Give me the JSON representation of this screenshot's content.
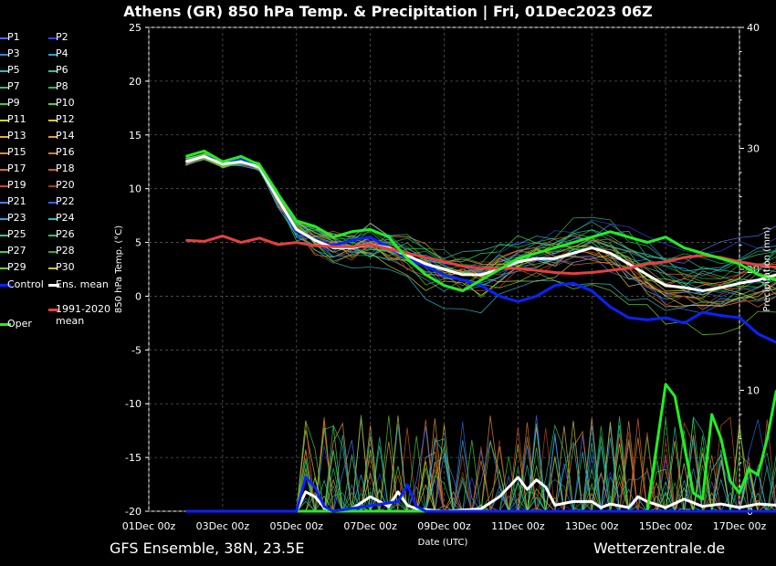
{
  "title": "Athens  (GR)  850 hPa Temp. & Precipitation | Fri, 01Dec2023 06Z",
  "footer": {
    "left": "GFS Ensemble, 38N, 23.5E",
    "right": "Wetterzentrale.de"
  },
  "legend": [
    {
      "label": "P1",
      "color": "#4a6cf7"
    },
    {
      "label": "P2",
      "color": "#3344dd"
    },
    {
      "label": "P3",
      "color": "#2f86e0"
    },
    {
      "label": "P4",
      "color": "#2fa0d0"
    },
    {
      "label": "P5",
      "color": "#2fb7c8"
    },
    {
      "label": "P6",
      "color": "#2ac29a"
    },
    {
      "label": "P7",
      "color": "#28c878"
    },
    {
      "label": "P8",
      "color": "#22c055"
    },
    {
      "label": "P9",
      "color": "#3ad03a"
    },
    {
      "label": "P10",
      "color": "#55d12a"
    },
    {
      "label": "P11",
      "color": "#cfd23a"
    },
    {
      "label": "P12",
      "color": "#e0c040"
    },
    {
      "label": "P13",
      "color": "#e8aa3a"
    },
    {
      "label": "P14",
      "color": "#e89a36"
    },
    {
      "label": "P15",
      "color": "#e88a30"
    },
    {
      "label": "P16",
      "color": "#e07a2a"
    },
    {
      "label": "P17",
      "color": "#e06a30"
    },
    {
      "label": "P18",
      "color": "#d05a2c"
    },
    {
      "label": "P19",
      "color": "#c04a28"
    },
    {
      "label": "P20",
      "color": "#a03a22"
    },
    {
      "label": "P21",
      "color": "#4f7cf0"
    },
    {
      "label": "P22",
      "color": "#3a64e0"
    },
    {
      "label": "P23",
      "color": "#30a8d8"
    },
    {
      "label": "P24",
      "color": "#2fc0c0"
    },
    {
      "label": "P25",
      "color": "#2ccf90"
    },
    {
      "label": "P26",
      "color": "#24c868"
    },
    {
      "label": "P27",
      "color": "#40d840"
    },
    {
      "label": "P28",
      "color": "#30b030"
    },
    {
      "label": "P29",
      "color": "#6ad23a"
    },
    {
      "label": "P30",
      "color": "#c8c83a"
    },
    {
      "label": "Control",
      "color": "#0a22ff"
    },
    {
      "label": "Ens. mean",
      "color": "#ffffff"
    },
    {
      "label": "1991-2020 mean",
      "color": "#e84040"
    },
    {
      "label": "Oper",
      "color": "#22ee22"
    }
  ],
  "chart_data": {
    "type": "line",
    "title": "Athens  (GR)  850 hPa Temp. & Precipitation | Fri, 01Dec2023 06Z",
    "xlabel": "Date (UTC)",
    "ylabel": "850 hPa Temp. (°C)",
    "y2label": "Precipitation (mm)",
    "x_ticks": [
      "01Dec 00z",
      "03Dec 00z",
      "05Dec 00z",
      "07Dec 00z",
      "09Dec 00z",
      "11Dec 00z",
      "13Dec 00z",
      "15Dec 00z",
      "17Dec 00z"
    ],
    "x_range_days": [
      0,
      16
    ],
    "ylim": [
      -20,
      25
    ],
    "y_ticks": [
      -20,
      -15,
      -10,
      -5,
      0,
      5,
      10,
      15,
      20,
      25
    ],
    "y2lim": [
      0,
      40
    ],
    "y2_ticks": [
      0,
      10,
      20,
      30,
      40
    ],
    "grid": true,
    "legend_position": "left",
    "series": [
      {
        "name": "Control",
        "color": "#0a22ff",
        "width": 3,
        "values": [
          [
            1,
            12.5
          ],
          [
            1.5,
            13
          ],
          [
            2,
            12.5
          ],
          [
            2.5,
            12.8
          ],
          [
            3,
            12
          ],
          [
            3.5,
            9
          ],
          [
            4,
            6
          ],
          [
            4.5,
            5.2
          ],
          [
            5,
            4.7
          ],
          [
            5.5,
            5.2
          ],
          [
            6,
            5.5
          ],
          [
            6.5,
            4.5
          ],
          [
            7,
            3.5
          ],
          [
            7.5,
            2.8
          ],
          [
            8,
            2
          ],
          [
            8.5,
            1.5
          ],
          [
            9,
            1
          ],
          [
            9.5,
            0
          ],
          [
            10,
            -0.5
          ],
          [
            10.5,
            0
          ],
          [
            11,
            1
          ],
          [
            11.5,
            1.2
          ],
          [
            12,
            0.5
          ],
          [
            12.5,
            -1
          ],
          [
            13,
            -2
          ],
          [
            13.5,
            -2.2
          ],
          [
            14,
            -2
          ],
          [
            14.5,
            -2.5
          ],
          [
            15,
            -1.5
          ],
          [
            15.5,
            -1.8
          ],
          [
            16,
            -2
          ],
          [
            16.5,
            -3.5
          ],
          [
            17,
            -4.3
          ]
        ]
      },
      {
        "name": "Ens. mean",
        "color": "#ffffff",
        "width": 3,
        "values": [
          [
            1,
            12.5
          ],
          [
            1.5,
            13
          ],
          [
            2,
            12.3
          ],
          [
            2.5,
            12.5
          ],
          [
            3,
            12
          ],
          [
            3.5,
            9
          ],
          [
            4,
            6.2
          ],
          [
            4.5,
            5.2
          ],
          [
            5,
            4.5
          ],
          [
            5.5,
            4.5
          ],
          [
            6,
            4.8
          ],
          [
            6.5,
            4.5
          ],
          [
            7,
            3.8
          ],
          [
            7.5,
            3
          ],
          [
            8,
            2.5
          ],
          [
            8.5,
            2
          ],
          [
            9,
            2
          ],
          [
            9.5,
            2.5
          ],
          [
            10,
            3.2
          ],
          [
            10.5,
            3.5
          ],
          [
            11,
            3.5
          ],
          [
            11.5,
            4
          ],
          [
            12,
            4.5
          ],
          [
            12.5,
            4
          ],
          [
            13,
            3
          ],
          [
            13.5,
            2
          ],
          [
            14,
            1
          ],
          [
            14.5,
            0.8
          ],
          [
            15,
            0.5
          ],
          [
            15.5,
            0.8
          ],
          [
            16,
            1.2
          ],
          [
            16.5,
            1.5
          ],
          [
            17,
            2
          ]
        ]
      },
      {
        "name": "1991-2020 mean",
        "color": "#e84040",
        "width": 3,
        "values": [
          [
            1,
            5.2
          ],
          [
            1.5,
            5.1
          ],
          [
            2,
            5.6
          ],
          [
            2.5,
            5
          ],
          [
            3,
            5.4
          ],
          [
            3.5,
            4.8
          ],
          [
            4,
            5
          ],
          [
            4.5,
            4.7
          ],
          [
            5,
            4.6
          ],
          [
            5.5,
            4.6
          ],
          [
            6,
            4.8
          ],
          [
            6.5,
            4.4
          ],
          [
            7,
            4
          ],
          [
            7.5,
            3.6
          ],
          [
            8,
            3.2
          ],
          [
            8.5,
            2.8
          ],
          [
            9,
            2.6
          ],
          [
            9.5,
            2.6
          ],
          [
            10,
            2.6
          ],
          [
            10.5,
            2.4
          ],
          [
            11,
            2.2
          ],
          [
            11.5,
            2.1
          ],
          [
            12,
            2.2
          ],
          [
            12.5,
            2.4
          ],
          [
            13,
            2.6
          ],
          [
            13.5,
            3
          ],
          [
            14,
            3.2
          ],
          [
            14.5,
            3.6
          ],
          [
            15,
            3.8
          ],
          [
            15.5,
            3.6
          ],
          [
            16,
            3.2
          ],
          [
            16.5,
            2.9
          ],
          [
            17,
            2.7
          ]
        ]
      },
      {
        "name": "Oper",
        "color": "#22ee22",
        "width": 3,
        "values": [
          [
            1,
            13
          ],
          [
            1.5,
            13.5
          ],
          [
            2,
            12.5
          ],
          [
            2.5,
            13
          ],
          [
            3,
            12.2
          ],
          [
            3.5,
            9.5
          ],
          [
            4,
            7
          ],
          [
            4.5,
            6.5
          ],
          [
            5,
            5.5
          ],
          [
            5.5,
            6
          ],
          [
            6,
            6.2
          ],
          [
            6.5,
            5.5
          ],
          [
            7,
            3.5
          ],
          [
            7.5,
            2
          ],
          [
            8,
            1
          ],
          [
            8.5,
            0.5
          ],
          [
            9,
            1.5
          ],
          [
            9.5,
            2.5
          ],
          [
            10,
            3.5
          ],
          [
            10.5,
            4
          ],
          [
            11,
            4.5
          ],
          [
            11.5,
            5
          ],
          [
            12,
            5.5
          ],
          [
            12.5,
            6
          ],
          [
            13,
            5.5
          ],
          [
            13.5,
            5
          ],
          [
            14,
            5.5
          ],
          [
            14.5,
            4.5
          ],
          [
            15,
            4
          ],
          [
            15.5,
            3.5
          ],
          [
            16,
            3
          ],
          [
            16.5,
            2
          ],
          [
            17,
            1.5
          ]
        ]
      }
    ],
    "precipitation": [
      {
        "name": "Ens. mean",
        "color": "#ffffff",
        "values": [
          [
            1,
            0
          ],
          [
            4,
            0
          ],
          [
            4.25,
            1.6
          ],
          [
            4.5,
            1.2
          ],
          [
            4.75,
            0.3
          ],
          [
            5,
            0
          ],
          [
            5.5,
            0.2
          ],
          [
            6,
            1.2
          ],
          [
            6.5,
            0.4
          ],
          [
            6.75,
            1.6
          ],
          [
            7,
            0.5
          ],
          [
            7.25,
            0.2
          ],
          [
            8,
            0
          ],
          [
            9,
            0.2
          ],
          [
            9.5,
            1.2
          ],
          [
            10,
            2.8
          ],
          [
            10.25,
            1.8
          ],
          [
            10.5,
            2.6
          ],
          [
            10.75,
            2
          ],
          [
            11,
            0.5
          ],
          [
            11.5,
            0.8
          ],
          [
            12,
            0.8
          ],
          [
            12.25,
            0.3
          ],
          [
            12.5,
            0.6
          ],
          [
            13,
            0.3
          ],
          [
            13.25,
            1.2
          ],
          [
            13.5,
            0.8
          ],
          [
            14,
            0.3
          ],
          [
            14.5,
            1
          ],
          [
            15,
            0.4
          ],
          [
            15.5,
            0.6
          ],
          [
            16,
            0.3
          ],
          [
            16.5,
            0.6
          ],
          [
            17,
            0.5
          ]
        ]
      },
      {
        "name": "Oper",
        "color": "#22ee22",
        "values": [
          [
            1,
            0
          ],
          [
            13.5,
            0
          ],
          [
            14,
            10.5
          ],
          [
            14.25,
            9.5
          ],
          [
            14.75,
            1.5
          ],
          [
            15,
            1
          ],
          [
            15.25,
            8
          ],
          [
            15.5,
            6
          ],
          [
            15.75,
            2.5
          ],
          [
            16,
            1.5
          ],
          [
            16.25,
            3.5
          ],
          [
            16.5,
            3
          ],
          [
            16.75,
            6
          ],
          [
            17,
            10
          ]
        ]
      },
      {
        "name": "Control",
        "color": "#0a22ff",
        "values": [
          [
            1,
            0
          ],
          [
            4,
            0
          ],
          [
            4.25,
            2.8
          ],
          [
            4.5,
            2
          ],
          [
            4.75,
            0.4
          ],
          [
            5,
            0
          ],
          [
            6.75,
            0.8
          ],
          [
            7,
            2.2
          ],
          [
            7.25,
            0.4
          ],
          [
            7.5,
            0
          ],
          [
            17,
            0
          ]
        ]
      }
    ]
  }
}
